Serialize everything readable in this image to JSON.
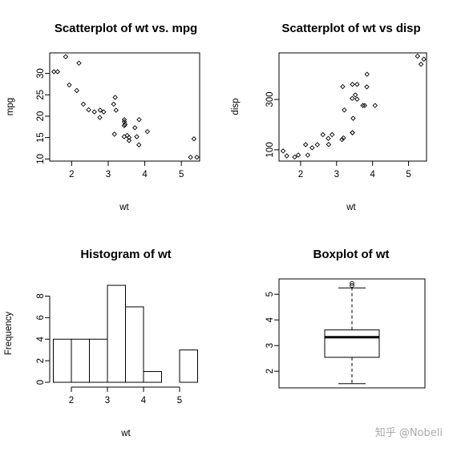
{
  "watermark": "知乎 @Nobeli",
  "chart_data": [
    {
      "type": "scatter",
      "title": "Scatterplot of wt vs. mpg",
      "xlabel": "wt",
      "ylabel": "mpg",
      "xlim": [
        1.4,
        5.5
      ],
      "ylim": [
        9.5,
        34.8
      ],
      "xticks": [
        2,
        3,
        4,
        5
      ],
      "yticks": [
        10,
        15,
        20,
        25,
        30
      ],
      "x": [
        2.62,
        2.875,
        2.32,
        3.215,
        3.44,
        3.46,
        3.57,
        3.19,
        3.15,
        3.44,
        3.44,
        4.07,
        3.73,
        3.78,
        5.25,
        5.424,
        5.345,
        2.2,
        1.615,
        1.835,
        2.465,
        3.52,
        3.435,
        3.84,
        3.845,
        1.935,
        2.14,
        1.513,
        3.17,
        2.77,
        3.57,
        2.78
      ],
      "y": [
        21.0,
        21.0,
        22.8,
        21.4,
        18.7,
        18.1,
        14.3,
        24.4,
        22.8,
        19.2,
        17.8,
        16.4,
        17.3,
        15.2,
        10.4,
        10.4,
        14.7,
        32.4,
        30.4,
        33.9,
        21.5,
        15.5,
        15.2,
        13.3,
        19.2,
        27.3,
        26.0,
        30.4,
        15.8,
        19.7,
        15.0,
        21.4
      ]
    },
    {
      "type": "scatter",
      "title": "Scatterplot of wt vs disp",
      "xlabel": "wt",
      "ylabel": "disp",
      "xlim": [
        1.4,
        5.5
      ],
      "ylim": [
        55,
        485
      ],
      "xticks": [
        2,
        3,
        4,
        5
      ],
      "yticks": [
        100,
        300
      ],
      "x": [
        2.62,
        2.875,
        2.32,
        3.215,
        3.44,
        3.46,
        3.57,
        3.19,
        3.15,
        3.44,
        3.44,
        4.07,
        3.73,
        3.78,
        5.25,
        5.424,
        5.345,
        2.2,
        1.615,
        1.835,
        2.465,
        3.52,
        3.435,
        3.84,
        3.845,
        1.935,
        2.14,
        1.513,
        3.17,
        2.77,
        3.57,
        2.78
      ],
      "y": [
        160,
        160,
        108,
        258,
        360,
        225,
        360,
        146.7,
        140.8,
        167.6,
        167.6,
        275.8,
        275.8,
        275.8,
        472,
        460,
        440,
        78.7,
        75.7,
        71.1,
        120.1,
        318,
        304,
        350,
        400,
        79,
        120.3,
        95.1,
        351,
        145,
        301,
        121
      ]
    },
    {
      "type": "bar",
      "subtype": "histogram",
      "title": "Histogram of wt",
      "xlabel": "wt",
      "ylabel": "Frequency",
      "breaks": [
        1.5,
        2.0,
        2.5,
        3.0,
        3.5,
        4.0,
        4.5,
        5.0,
        5.5
      ],
      "values": [
        4,
        4,
        4,
        9,
        7,
        1,
        0,
        3
      ],
      "xlim": [
        1.4,
        5.6
      ],
      "ylim": [
        0,
        9.3
      ],
      "xticks": [
        2,
        3,
        4,
        5
      ],
      "yticks": [
        0,
        2,
        4,
        6,
        8
      ]
    },
    {
      "type": "box",
      "title": "Boxplot of wt",
      "min": 1.513,
      "q1": 2.5425,
      "median": 3.325,
      "q3": 3.61,
      "max_whisker": 5.25,
      "outliers": [
        5.424,
        5.345
      ],
      "ylim": [
        1.35,
        5.6
      ],
      "yticks": [
        2,
        3,
        4,
        5
      ]
    }
  ]
}
